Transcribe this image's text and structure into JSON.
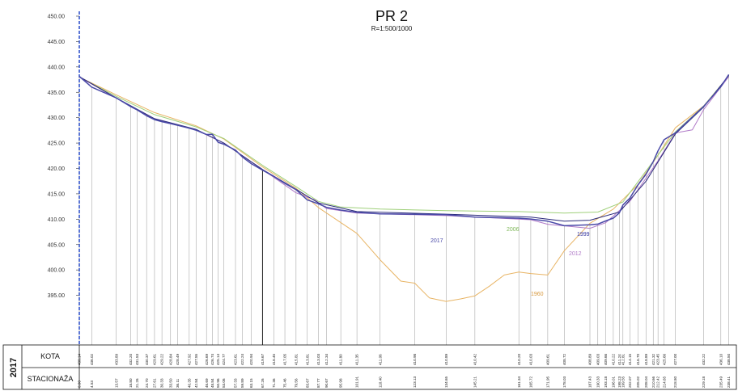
{
  "chart_data": {
    "type": "line",
    "title": "PR 2",
    "subtitle": "R=1:500/1000",
    "ylim": [
      390,
      450
    ],
    "y_ticks": [
      "450.00",
      "445.00",
      "440.00",
      "435.00",
      "430.00",
      "425.00",
      "420.00",
      "415.00",
      "410.00",
      "405.00",
      "400.00",
      "395.00"
    ],
    "xlim": [
      0,
      240
    ],
    "grid": false,
    "table": {
      "year": "2017",
      "row_labels": [
        "KOTA",
        "STACIONAŽA"
      ],
      "kota": [
        "438.14",
        "436.02",
        "433.89",
        "432.20",
        "431.53",
        "430.37",
        "429.61",
        "429.22",
        "428.84",
        "428.49",
        "427.92",
        "427.55",
        "426.69",
        "426.74",
        "425.14",
        "424.77",
        "423.61",
        "422.24",
        "420.94",
        "419.67",
        "418.45",
        "417.05",
        "415.81",
        "413.81",
        "413.03",
        "412.34",
        "411.80",
        "411.35",
        "411.06",
        "410.98",
        "410.89",
        "410.42",
        "410.20",
        "410.03",
        "409.61",
        "408.72",
        "408.89",
        "409.03",
        "409.66",
        "410.22",
        "411.24",
        "412.81",
        "414.15",
        "416.70",
        "418.89",
        "421.32",
        "423.45",
        "425.66",
        "427.00",
        "432.22",
        "436.10",
        "438.50"
      ],
      "stacionaza": [
        "0.00",
        "4.53",
        "13.57",
        "18.80",
        "21.26",
        "24.70",
        "27.61",
        "30.33",
        "33.50",
        "36.11",
        "40.35",
        "42.84",
        "46.69",
        "48.84",
        "50.96",
        "53.06",
        "57.33",
        "59.89",
        "63.15",
        "67.26",
        "71.36",
        "75.46",
        "79.56",
        "83.67",
        "87.77",
        "90.67",
        "95.98",
        "101.91",
        "110.40",
        "123.13",
        "134.65",
        "145.21",
        "161.34",
        "165.72",
        "171.95",
        "178.03",
        "187.43",
        "190.33",
        "193.18",
        "196.01",
        "198.23",
        "199.55",
        "202.07",
        "205.02",
        "208.04",
        "210.66",
        "212.42",
        "214.65",
        "218.80",
        "229.18",
        "235.49",
        "238.41"
      ]
    },
    "series": [
      {
        "name": "2017",
        "color": "#4a4aa8",
        "x": [
          0,
          4.53,
          13.57,
          18.8,
          21.26,
          24.7,
          27.61,
          30.33,
          33.5,
          36.11,
          40.35,
          42.84,
          46.69,
          48.84,
          50.96,
          53.06,
          57.33,
          59.89,
          63.15,
          67.26,
          71.36,
          75.46,
          79.56,
          83.67,
          87.77,
          90.67,
          95.98,
          101.91,
          110.4,
          123.13,
          134.65,
          145.21,
          161.34,
          165.72,
          171.95,
          178.03,
          187.43,
          190.33,
          193.18,
          196.01,
          198.23,
          199.55,
          202.07,
          205.02,
          208.04,
          210.66,
          212.42,
          214.65,
          218.8,
          229.18,
          235.49,
          238.41
        ],
        "y": [
          438.14,
          436.02,
          433.89,
          432.2,
          431.53,
          430.37,
          429.61,
          429.22,
          428.84,
          428.49,
          427.92,
          427.55,
          426.69,
          426.74,
          425.14,
          424.77,
          423.61,
          422.24,
          420.94,
          419.67,
          418.45,
          417.05,
          415.81,
          413.81,
          413.03,
          412.34,
          411.8,
          411.35,
          411.06,
          410.98,
          410.89,
          410.42,
          410.2,
          410.03,
          409.61,
          408.72,
          408.89,
          409.03,
          409.66,
          410.22,
          411.24,
          412.81,
          414.15,
          416.7,
          418.89,
          421.32,
          423.45,
          425.66,
          427.0,
          432.22,
          436.1,
          438.5
        ]
      },
      {
        "name": "1999",
        "color": "#2a2a7a",
        "x": [
          0,
          13.57,
          27.61,
          42.84,
          53.06,
          67.26,
          79.56,
          87.77,
          101.91,
          134.65,
          165.72,
          178.03,
          187.43,
          198.23,
          208.04,
          218.8,
          229.18,
          238.41
        ],
        "y": [
          438.1,
          433.9,
          429.8,
          427.7,
          425.0,
          419.8,
          415.9,
          413.2,
          411.5,
          411.0,
          410.4,
          409.6,
          409.8,
          411.4,
          417.5,
          426.8,
          432.1,
          438.3
        ]
      },
      {
        "name": "2006",
        "color": "#9fd07a",
        "x": [
          0,
          13.57,
          27.61,
          42.84,
          53.06,
          67.26,
          79.56,
          87.77,
          95.98,
          110.4,
          134.65,
          161.34,
          178.03,
          190.33,
          199.55,
          208.04,
          218.8,
          229.18,
          238.41
        ],
        "y": [
          438.0,
          434.2,
          430.6,
          428.2,
          425.9,
          420.6,
          416.4,
          413.5,
          412.4,
          412.0,
          411.7,
          411.5,
          411.2,
          411.4,
          413.4,
          419.5,
          427.2,
          432.3,
          438.2
        ]
      },
      {
        "name": "2012",
        "color": "#b07ac8",
        "x": [
          0,
          13.57,
          27.61,
          42.84,
          53.06,
          67.26,
          79.56,
          86.5,
          90.67,
          101.91,
          134.65,
          165.72,
          171.95,
          187.43,
          193.18,
          202.07,
          212.42,
          218.8,
          225.0,
          229.18,
          238.41
        ],
        "y": [
          438.0,
          433.9,
          429.7,
          427.6,
          425.0,
          419.8,
          415.2,
          413.8,
          412.1,
          411.2,
          410.7,
          409.9,
          409.0,
          408.2,
          409.3,
          413.5,
          421.5,
          427.0,
          427.6,
          431.6,
          438.1
        ]
      },
      {
        "name": "1960",
        "color": "#e8b464",
        "x": [
          0,
          13.57,
          27.61,
          42.84,
          53.06,
          67.26,
          79.56,
          87.77,
          101.91,
          110.4,
          118.0,
          123.13,
          128.5,
          134.65,
          140.0,
          145.21,
          150.5,
          156.0,
          161.34,
          165.72,
          171.95,
          178.03,
          187.43,
          196.01,
          205.02,
          212.42,
          218.8,
          229.18,
          238.41
        ],
        "y": [
          438.0,
          434.5,
          431.0,
          428.4,
          425.8,
          420.3,
          416.1,
          412.3,
          407.2,
          402.0,
          397.8,
          397.4,
          394.5,
          393.8,
          394.3,
          394.9,
          396.8,
          399.0,
          399.6,
          399.3,
          399.0,
          403.8,
          409.2,
          412.0,
          416.8,
          422.6,
          428.0,
          432.3,
          438.2
        ]
      }
    ],
    "series_labels": [
      "2017",
      "1999",
      "2006",
      "2012",
      "1960"
    ]
  }
}
